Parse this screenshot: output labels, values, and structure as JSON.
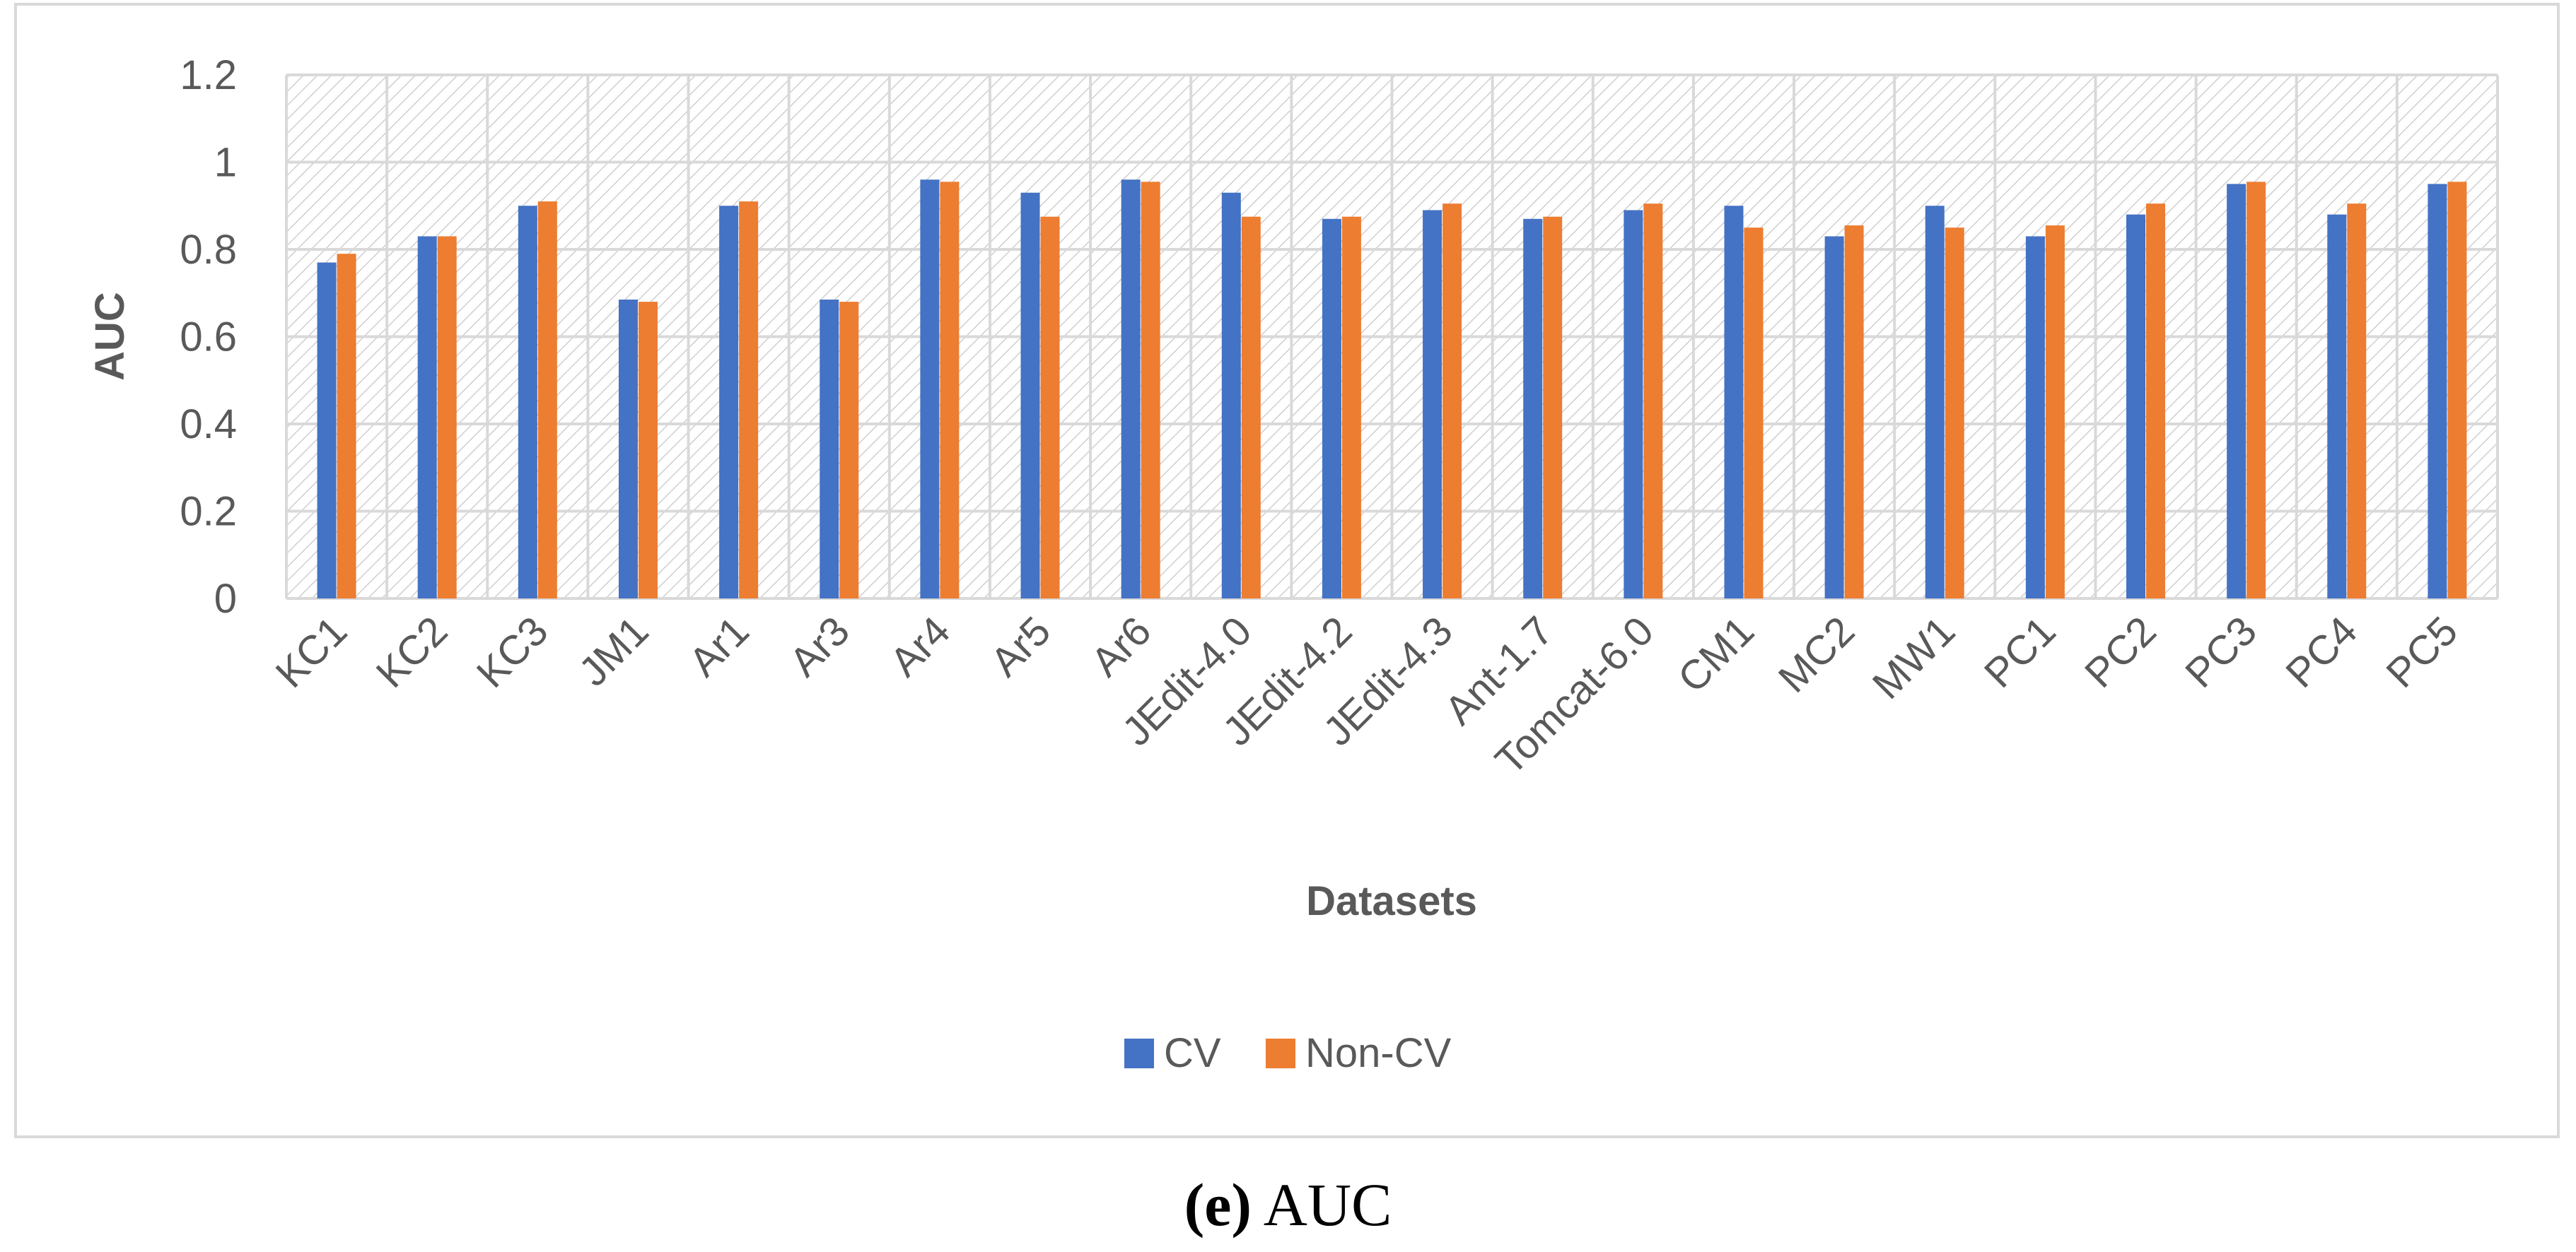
{
  "chart_data": {
    "type": "bar",
    "title": "",
    "xlabel": "Datasets",
    "ylabel": "AUC",
    "ylim": [
      0,
      1.2
    ],
    "yticks": [
      "0",
      "0.2",
      "0.4",
      "0.6",
      "0.8",
      "1",
      "1.2"
    ],
    "categories": [
      "KC1",
      "KC2",
      "KC3",
      "JM1",
      "Ar1",
      "Ar3",
      "Ar4",
      "Ar5",
      "Ar6",
      "JEdit-4.0",
      "JEdit-4.2",
      "JEdit-4.3",
      "Ant-1.7",
      "Tomcat-6.0",
      "CM1",
      "MC2",
      "MW1",
      "PC1",
      "PC2",
      "PC3",
      "PC4",
      "PC5"
    ],
    "series": [
      {
        "name": "CV",
        "color": "#4472c4",
        "values": [
          0.77,
          0.83,
          0.9,
          0.685,
          0.9,
          0.685,
          0.96,
          0.93,
          0.96,
          0.93,
          0.87,
          0.89,
          0.87,
          0.89,
          0.9,
          0.83,
          0.9,
          0.83,
          0.88,
          0.95,
          0.88,
          0.95
        ]
      },
      {
        "name": "Non-CV",
        "color": "#ed7d31",
        "values": [
          0.79,
          0.83,
          0.91,
          0.68,
          0.91,
          0.68,
          0.955,
          0.875,
          0.955,
          0.875,
          0.875,
          0.905,
          0.875,
          0.905,
          0.85,
          0.855,
          0.85,
          0.855,
          0.905,
          0.955,
          0.905,
          0.955
        ]
      }
    ],
    "legend_position": "bottom",
    "grid": true
  },
  "caption": {
    "letter": "(e)",
    "text": " AUC"
  }
}
